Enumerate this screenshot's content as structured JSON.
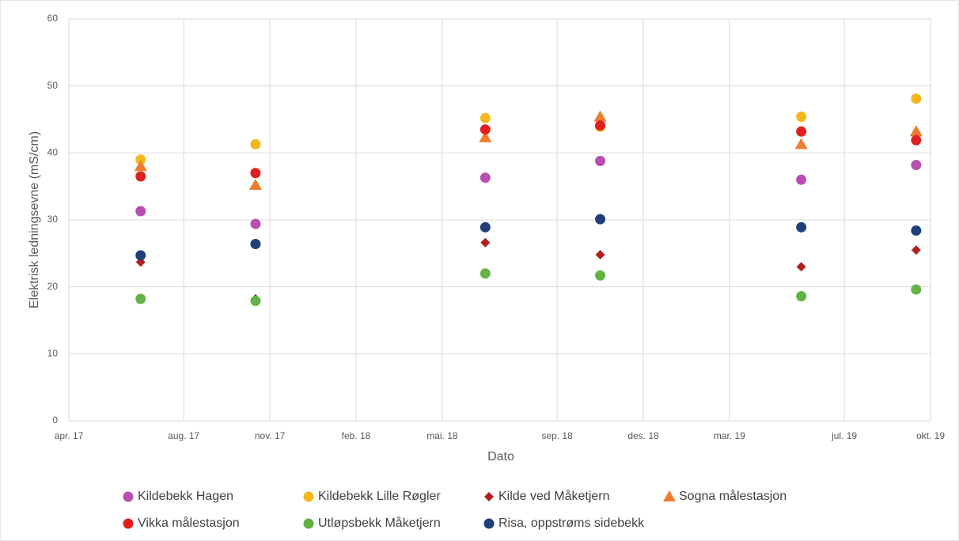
{
  "chart_data": {
    "type": "scatter",
    "xlabel": "Dato",
    "ylabel": "Elektrisk ledningsevne (mS/cm)",
    "x": [
      "2017-06",
      "2017-10",
      "2018-06",
      "2018-10",
      "2019-05",
      "2019-09"
    ],
    "xlim": [
      "2017-04",
      "2019-10"
    ],
    "xticks": [
      {
        "value": "2017-04",
        "label": "apr. 17"
      },
      {
        "value": "2017-08",
        "label": "aug. 17"
      },
      {
        "value": "2017-11",
        "label": "nov. 17"
      },
      {
        "value": "2018-02",
        "label": "feb. 18"
      },
      {
        "value": "2018-05",
        "label": "mai. 18"
      },
      {
        "value": "2018-09",
        "label": "sep. 18"
      },
      {
        "value": "2018-12",
        "label": "des. 18"
      },
      {
        "value": "2019-03",
        "label": "mar. 19"
      },
      {
        "value": "2019-07",
        "label": "jul. 19"
      },
      {
        "value": "2019-10",
        "label": "okt. 19"
      }
    ],
    "ylim": [
      0,
      60
    ],
    "yticks": [
      0,
      10,
      20,
      30,
      40,
      50,
      60
    ],
    "grid": true,
    "legend": "bottom",
    "series": [
      {
        "name": "Kildebekk Hagen",
        "color": "#b84fb0",
        "marker": "circle",
        "values": [
          31.3,
          29.4,
          36.3,
          38.8,
          36.0,
          38.2
        ]
      },
      {
        "name": "Kildebekk Lille Røgler",
        "color": "#f5b81c",
        "marker": "circle",
        "values": [
          39.0,
          41.3,
          45.2,
          43.9,
          45.4,
          48.1
        ]
      },
      {
        "name": "Kilde ved Måketjern",
        "color": "#b21f1f",
        "marker": "diamond",
        "values": [
          23.7,
          18.2,
          26.6,
          24.8,
          23.0,
          25.5
        ]
      },
      {
        "name": "Sogna målestasjon",
        "color": "#ee7d31",
        "marker": "triangle",
        "values": [
          38.0,
          35.2,
          42.3,
          45.4,
          41.3,
          43.2
        ]
      },
      {
        "name": "Vikka målestasjon",
        "color": "#e0201f",
        "marker": "circle",
        "values": [
          36.5,
          37.0,
          43.5,
          44.1,
          43.2,
          41.9
        ]
      },
      {
        "name": "Utløpsbekk Måketjern",
        "color": "#63b246",
        "marker": "circle",
        "values": [
          18.2,
          17.9,
          22.0,
          21.7,
          18.6,
          19.6
        ]
      },
      {
        "name": "Risa, oppstrøms sidebekk",
        "color": "#1f3f7a",
        "marker": "circle",
        "values": [
          24.7,
          26.4,
          28.9,
          30.1,
          28.9,
          28.4
        ]
      }
    ]
  }
}
